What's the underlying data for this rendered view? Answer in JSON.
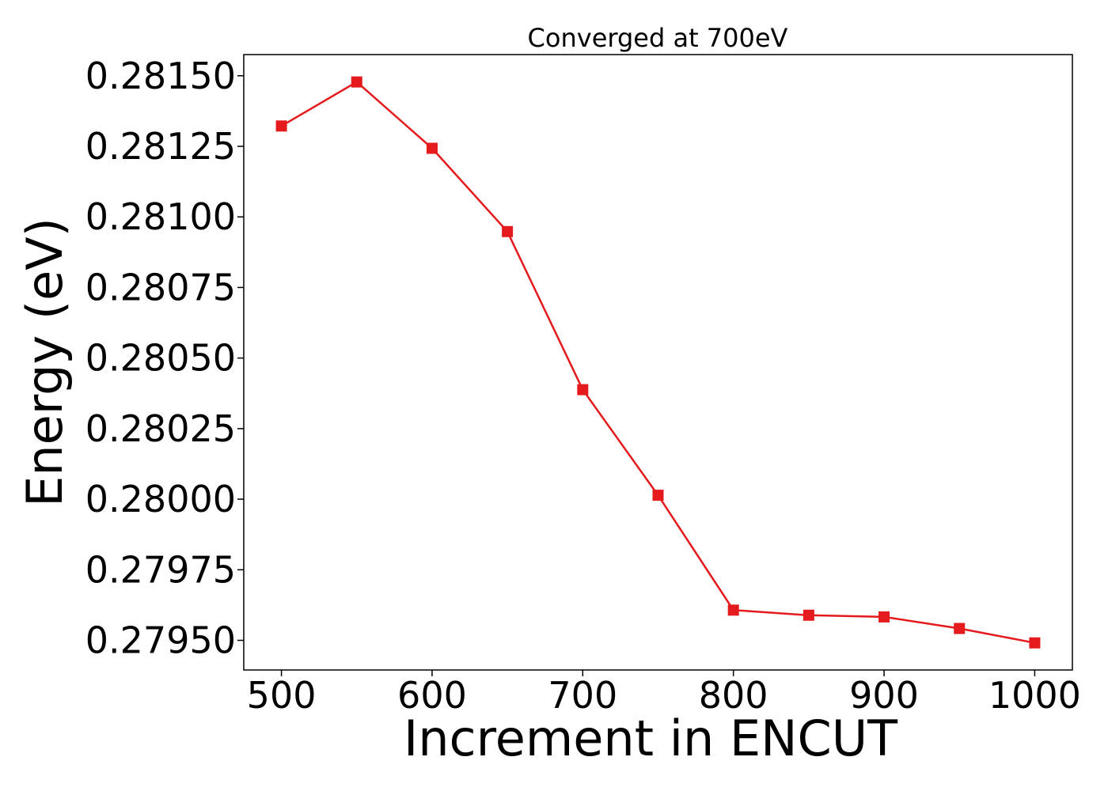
{
  "chart_data": {
    "type": "line",
    "title": "Converged at 700eV",
    "xlabel": "Increment in ENCUT",
    "ylabel": "Energy (eV)",
    "x": [
      500,
      550,
      600,
      650,
      700,
      750,
      800,
      850,
      900,
      950,
      1000
    ],
    "series": [
      {
        "values": [
          0.281322,
          0.281478,
          0.281243,
          0.280948,
          0.280388,
          0.280014,
          0.279607,
          0.279589,
          0.279583,
          0.279542,
          0.279491
        ],
        "color": "#e41a1c",
        "marker": "square"
      }
    ],
    "xticks": [
      "500",
      "600",
      "700",
      "800",
      "900",
      "1000"
    ],
    "xtick_values": [
      500,
      600,
      700,
      800,
      900,
      1000
    ],
    "yticks": [
      "0.27950",
      "0.27975",
      "0.28000",
      "0.28025",
      "0.28050",
      "0.28075",
      "0.28100",
      "0.28125",
      "0.28150"
    ],
    "ytick_values": [
      0.2795,
      0.27975,
      0.28,
      0.28025,
      0.2805,
      0.28075,
      0.281,
      0.28125,
      0.2815
    ],
    "xlim": [
      475,
      1025
    ],
    "ylim": [
      0.279395,
      0.281575
    ],
    "grid": false,
    "legend": "none"
  }
}
